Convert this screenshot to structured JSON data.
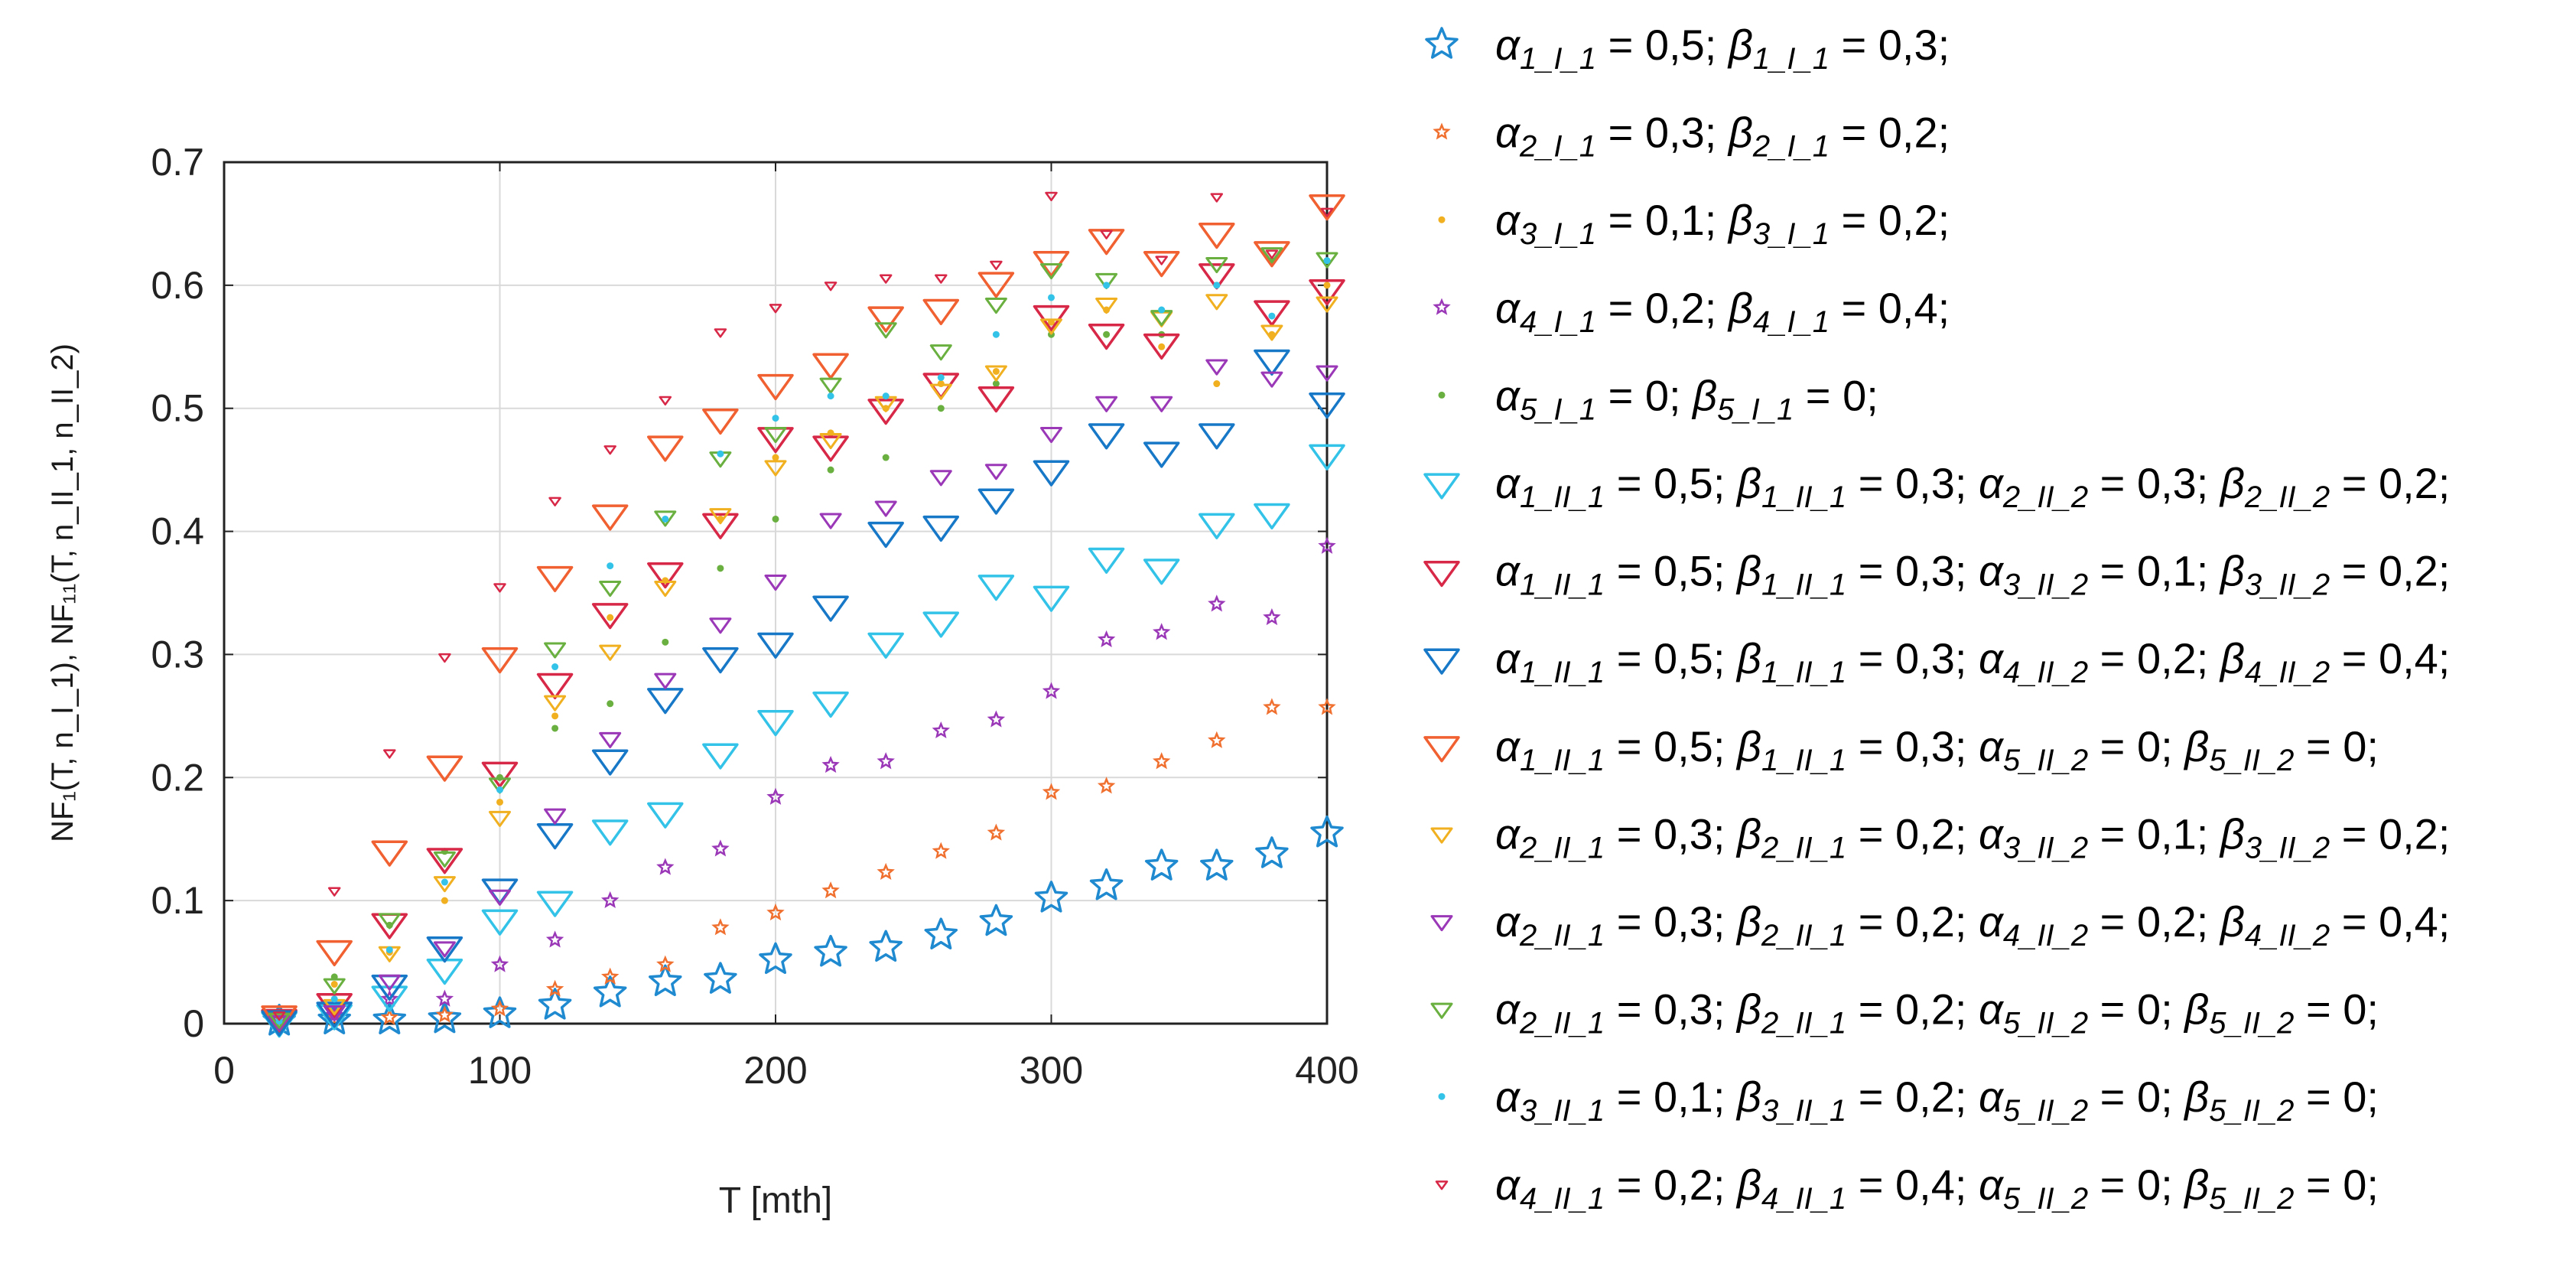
{
  "chart_data": {
    "type": "scatter",
    "xlabel": "T [mth]",
    "ylabel": "NF₁(T, n_I_1), NF₁₁(T, n_II_1, n_II_2)",
    "xlim": [
      0,
      400
    ],
    "ylim": [
      0,
      0.7
    ],
    "xticks": [
      0,
      100,
      200,
      300,
      400
    ],
    "yticks": [
      0,
      0.1,
      0.2,
      0.3,
      0.4,
      0.5,
      0.6,
      0.7
    ],
    "ytick_labels": [
      "0",
      "0.1",
      "0.2",
      "0.3",
      "0.4",
      "0.5",
      "0.6",
      "0.7"
    ],
    "grid": true,
    "legend_position": "right",
    "x": [
      20,
      40,
      60,
      80,
      100,
      120,
      140,
      160,
      180,
      200,
      220,
      240,
      260,
      280,
      300,
      320,
      340,
      360,
      380,
      400
    ],
    "series": [
      {
        "name": "α1_I_1 = 0,5; β1_I_1 = 0,3;",
        "marker": "star",
        "color": "#1f8ad0",
        "values": [
          0.002,
          0.003,
          0.003,
          0.004,
          0.008,
          0.015,
          0.025,
          0.034,
          0.036,
          0.052,
          0.058,
          0.062,
          0.072,
          0.083,
          0.102,
          0.112,
          0.128,
          0.128,
          0.138,
          0.155
        ]
      },
      {
        "name": "α2_I_1 = 0,3; β2_I_1 = 0,2;",
        "marker": "small-star",
        "color": "#f07030",
        "values": [
          0.003,
          0.004,
          0.005,
          0.007,
          0.012,
          0.028,
          0.038,
          0.048,
          0.078,
          0.09,
          0.108,
          0.123,
          0.14,
          0.155,
          0.188,
          0.193,
          0.213,
          0.23,
          0.257,
          0.257
        ]
      },
      {
        "name": "α3_I_1 = 0,1; β3_I_1 = 0,2;",
        "marker": "dot",
        "color": "#f0b020",
        "values": [
          0.006,
          0.032,
          0.058,
          0.1,
          0.18,
          0.25,
          0.33,
          0.36,
          0.41,
          0.46,
          0.48,
          0.5,
          0.52,
          0.53,
          0.57,
          0.58,
          0.55,
          0.52,
          0.56,
          0.6
        ]
      },
      {
        "name": "α4_I_1 = 0,2; β4_I_1 = 0,4;",
        "marker": "small-star",
        "color": "#9a38b8",
        "values": [
          0.003,
          0.007,
          0.02,
          0.02,
          0.048,
          0.068,
          0.1,
          0.127,
          0.142,
          0.184,
          0.21,
          0.213,
          0.238,
          0.247,
          0.27,
          0.312,
          0.318,
          0.341,
          0.33,
          0.388
        ]
      },
      {
        "name": "α5_I_1 = 0; β5_I_1 = 0;",
        "marker": "dot",
        "color": "#6ab040",
        "values": [
          0.005,
          0.038,
          0.08,
          0.14,
          0.2,
          0.24,
          0.26,
          0.31,
          0.37,
          0.41,
          0.45,
          0.46,
          0.5,
          0.52,
          0.56,
          0.56,
          0.56,
          0.6,
          0.62,
          0.62
        ]
      },
      {
        "name": "α1_II_1 = 0,5; β1_II_1 = 0,3; α2_II_2 = 0,3; β2_II_2 = 0,2;",
        "marker": "tri-large",
        "color": "#33c3e8",
        "values": [
          0.002,
          0.008,
          0.023,
          0.045,
          0.085,
          0.1,
          0.158,
          0.172,
          0.22,
          0.247,
          0.262,
          0.31,
          0.327,
          0.357,
          0.348,
          0.379,
          0.37,
          0.407,
          0.415,
          0.463
        ]
      },
      {
        "name": "α1_II_1 = 0,5; β1_II_1 = 0,3; α3_II_2 = 0,1; β3_II_2 = 0,2;",
        "marker": "tri-large",
        "color": "#d82848",
        "values": [
          0.004,
          0.017,
          0.082,
          0.135,
          0.205,
          0.277,
          0.334,
          0.367,
          0.407,
          0.477,
          0.47,
          0.5,
          0.521,
          0.51,
          0.576,
          0.561,
          0.553,
          0.61,
          0.58,
          0.597
        ]
      },
      {
        "name": "α1_II_1 = 0,5; β1_II_1 = 0,3; α4_II_2 = 0,2; β4_II_2 = 0,4;",
        "marker": "tri-large",
        "color": "#1878c8",
        "values": [
          0.003,
          0.01,
          0.032,
          0.063,
          0.11,
          0.155,
          0.215,
          0.265,
          0.298,
          0.31,
          0.34,
          0.4,
          0.405,
          0.427,
          0.45,
          0.48,
          0.465,
          0.48,
          0.54,
          0.505
        ]
      },
      {
        "name": "α1_II_1 = 0,5; β1_II_1 = 0,3; α5_II_2 = 0; β5_II_2 = 0;",
        "marker": "tri-large",
        "color": "#f06030",
        "values": [
          0.007,
          0.06,
          0.141,
          0.21,
          0.298,
          0.364,
          0.414,
          0.47,
          0.492,
          0.52,
          0.537,
          0.575,
          0.581,
          0.603,
          0.62,
          0.638,
          0.62,
          0.643,
          0.628,
          0.666
        ]
      },
      {
        "name": "α2_II_1 = 0,3; β2_II_1 = 0,2; α3_II_2 = 0,1; β3_II_2 = 0,2;",
        "marker": "tri-small",
        "color": "#f0b020",
        "values": [
          0.003,
          0.015,
          0.058,
          0.115,
          0.168,
          0.262,
          0.303,
          0.355,
          0.414,
          0.453,
          0.475,
          0.505,
          0.515,
          0.53,
          0.568,
          0.585,
          0.574,
          0.588,
          0.563,
          0.586
        ]
      },
      {
        "name": "α2_II_1 = 0,3; β2_II_1 = 0,2; α4_II_2 = 0,2; β4_II_2 = 0,4;",
        "marker": "tri-small",
        "color": "#9a38b8",
        "values": [
          0.002,
          0.01,
          0.035,
          0.062,
          0.104,
          0.17,
          0.232,
          0.28,
          0.325,
          0.36,
          0.41,
          0.42,
          0.445,
          0.45,
          0.48,
          0.505,
          0.505,
          0.535,
          0.525,
          0.53
        ]
      },
      {
        "name": "α2_II_1 = 0,3; β2_II_1 = 0,2; α5_II_2 = 0; β5_II_2 = 0;",
        "marker": "tri-small",
        "color": "#6ab040",
        "values": [
          0.004,
          0.032,
          0.085,
          0.135,
          0.195,
          0.305,
          0.355,
          0.412,
          0.46,
          0.48,
          0.52,
          0.565,
          0.547,
          0.585,
          0.613,
          0.605,
          0.575,
          0.618,
          0.626,
          0.622
        ]
      },
      {
        "name": "α3_II_1 = 0,1; β3_II_1 = 0,2; α5_II_2 = 0; β5_II_2 = 0;",
        "marker": "dot",
        "color": "#33c3e8",
        "values": [
          0.002,
          0.02,
          0.06,
          0.115,
          0.19,
          0.29,
          0.372,
          0.41,
          0.463,
          0.492,
          0.51,
          0.51,
          0.525,
          0.56,
          0.59,
          0.6,
          0.58,
          0.6,
          0.575,
          0.62
        ]
      },
      {
        "name": "α4_II_1 = 0,2; β4_II_1 = 0,4; α5_II_2 = 0; β5_II_2 = 0;",
        "marker": "tri-tiny",
        "color": "#d82848",
        "values": [
          0.007,
          0.108,
          0.22,
          0.298,
          0.355,
          0.425,
          0.467,
          0.507,
          0.562,
          0.582,
          0.6,
          0.606,
          0.606,
          0.617,
          0.673,
          0.642,
          0.621,
          0.672,
          0.626,
          0.66
        ]
      }
    ]
  },
  "legend": {
    "items": [
      {
        "parts": [
          [
            "α",
            "1_I_1",
            " = 0,5; "
          ],
          [
            "β",
            "1_I_1",
            " = 0,3;"
          ]
        ]
      },
      {
        "parts": [
          [
            "α",
            "2_I_1",
            " = 0,3; "
          ],
          [
            "β",
            "2_I_1",
            " = 0,2;"
          ]
        ]
      },
      {
        "parts": [
          [
            "α",
            "3_I_1",
            " = 0,1; "
          ],
          [
            "β",
            "3_I_1",
            " = 0,2;"
          ]
        ]
      },
      {
        "parts": [
          [
            "α",
            "4_I_1",
            " = 0,2; "
          ],
          [
            "β",
            "4_I_1",
            " = 0,4;"
          ]
        ]
      },
      {
        "parts": [
          [
            "α",
            "5_I_1",
            " = 0; "
          ],
          [
            "β",
            "5_I_1",
            " = 0;"
          ]
        ]
      },
      {
        "parts": [
          [
            "α",
            "1_II_1",
            " = 0,5; "
          ],
          [
            "β",
            "1_II_1",
            " = 0,3; "
          ],
          [
            "α",
            "2_II_2",
            " = 0,3; "
          ],
          [
            "β",
            "2_II_2",
            " = 0,2;"
          ]
        ]
      },
      {
        "parts": [
          [
            "α",
            "1_II_1",
            " = 0,5; "
          ],
          [
            "β",
            "1_II_1",
            " = 0,3; "
          ],
          [
            "α",
            "3_II_2",
            " = 0,1; "
          ],
          [
            "β",
            "3_II_2",
            " = 0,2;"
          ]
        ]
      },
      {
        "parts": [
          [
            "α",
            "1_II_1",
            " = 0,5; "
          ],
          [
            "β",
            "1_II_1",
            " = 0,3; "
          ],
          [
            "α",
            "4_II_2",
            " = 0,2; "
          ],
          [
            "β",
            "4_II_2",
            " = 0,4;"
          ]
        ]
      },
      {
        "parts": [
          [
            "α",
            "1_II_1",
            " = 0,5; "
          ],
          [
            "β",
            "1_II_1",
            " = 0,3; "
          ],
          [
            "α",
            "5_II_2",
            " = 0; "
          ],
          [
            "β",
            "5_II_2",
            " = 0;"
          ]
        ]
      },
      {
        "parts": [
          [
            "α",
            "2_II_1",
            " = 0,3; "
          ],
          [
            "β",
            "2_II_1",
            " = 0,2; "
          ],
          [
            "α",
            "3_II_2",
            " = 0,1; "
          ],
          [
            "β",
            "3_II_2",
            " = 0,2;"
          ]
        ]
      },
      {
        "parts": [
          [
            "α",
            "2_II_1",
            " = 0,3; "
          ],
          [
            "β",
            "2_II_1",
            " = 0,2; "
          ],
          [
            "α",
            "4_II_2",
            " = 0,2; "
          ],
          [
            "β",
            "4_II_2",
            " = 0,4;"
          ]
        ]
      },
      {
        "parts": [
          [
            "α",
            "2_II_1",
            " = 0,3; "
          ],
          [
            "β",
            "2_II_1",
            " = 0,2; "
          ],
          [
            "α",
            "5_II_2",
            " = 0; "
          ],
          [
            "β",
            "5_II_2",
            " = 0;"
          ]
        ]
      },
      {
        "parts": [
          [
            "α",
            "3_II_1",
            " = 0,1; "
          ],
          [
            "β",
            "3_II_1",
            " = 0,2; "
          ],
          [
            "α",
            "5_II_2",
            " = 0; "
          ],
          [
            "β",
            "5_II_2",
            " = 0;"
          ]
        ]
      },
      {
        "parts": [
          [
            "α",
            "4_II_1",
            " = 0,2; "
          ],
          [
            "β",
            "4_II_1",
            " = 0,4; "
          ],
          [
            "α",
            "5_II_2",
            " = 0; "
          ],
          [
            "β",
            "5_II_2",
            " = 0;"
          ]
        ]
      }
    ]
  }
}
